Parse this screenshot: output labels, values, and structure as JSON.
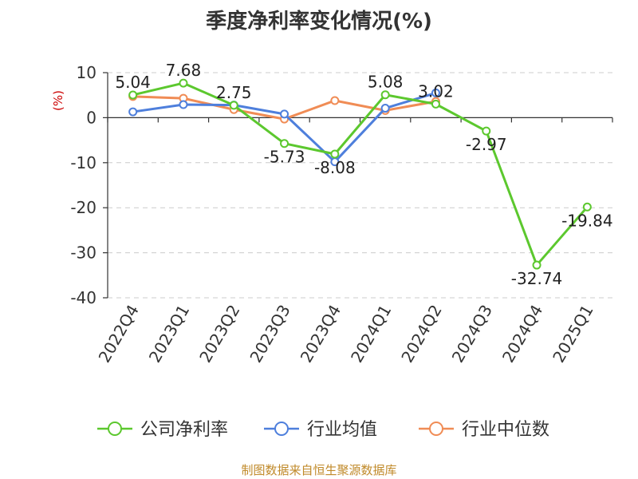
{
  "chart_data": {
    "type": "line",
    "title": "季度净利率变化情况(%)",
    "ylabel": "(%)",
    "xlabel": "",
    "categories": [
      "2022Q4",
      "2023Q1",
      "2023Q2",
      "2023Q3",
      "2023Q4",
      "2024Q1",
      "2024Q2",
      "2024Q3",
      "2024Q4",
      "2025Q1"
    ],
    "ylim": [
      -40,
      10
    ],
    "yticks": [
      10,
      0,
      -10,
      -20,
      -30,
      -40
    ],
    "grid": "horizontal dashed",
    "legend_position": "bottom",
    "series": [
      {
        "name": "公司净利率",
        "color": "#5cc82e",
        "values": [
          5.04,
          7.68,
          2.75,
          -5.73,
          -8.08,
          5.08,
          3.02,
          -2.97,
          -32.74,
          -19.84
        ],
        "labels": [
          "5.04",
          "7.68",
          "2.75",
          "-5.73",
          "-8.08",
          "5.08",
          "3.02",
          "-2.97",
          "-32.74",
          "-19.84"
        ]
      },
      {
        "name": "行业均值",
        "color": "#4e7fdc",
        "values": [
          1.3,
          2.9,
          2.8,
          0.8,
          -9.8,
          2.1,
          5.5,
          null,
          null,
          null
        ]
      },
      {
        "name": "行业中位数",
        "color": "#f08c55",
        "values": [
          4.7,
          4.3,
          1.8,
          -0.3,
          3.8,
          1.6,
          3.6,
          null,
          null,
          null
        ]
      }
    ]
  },
  "source": "制图数据来自恒生聚源数据库"
}
